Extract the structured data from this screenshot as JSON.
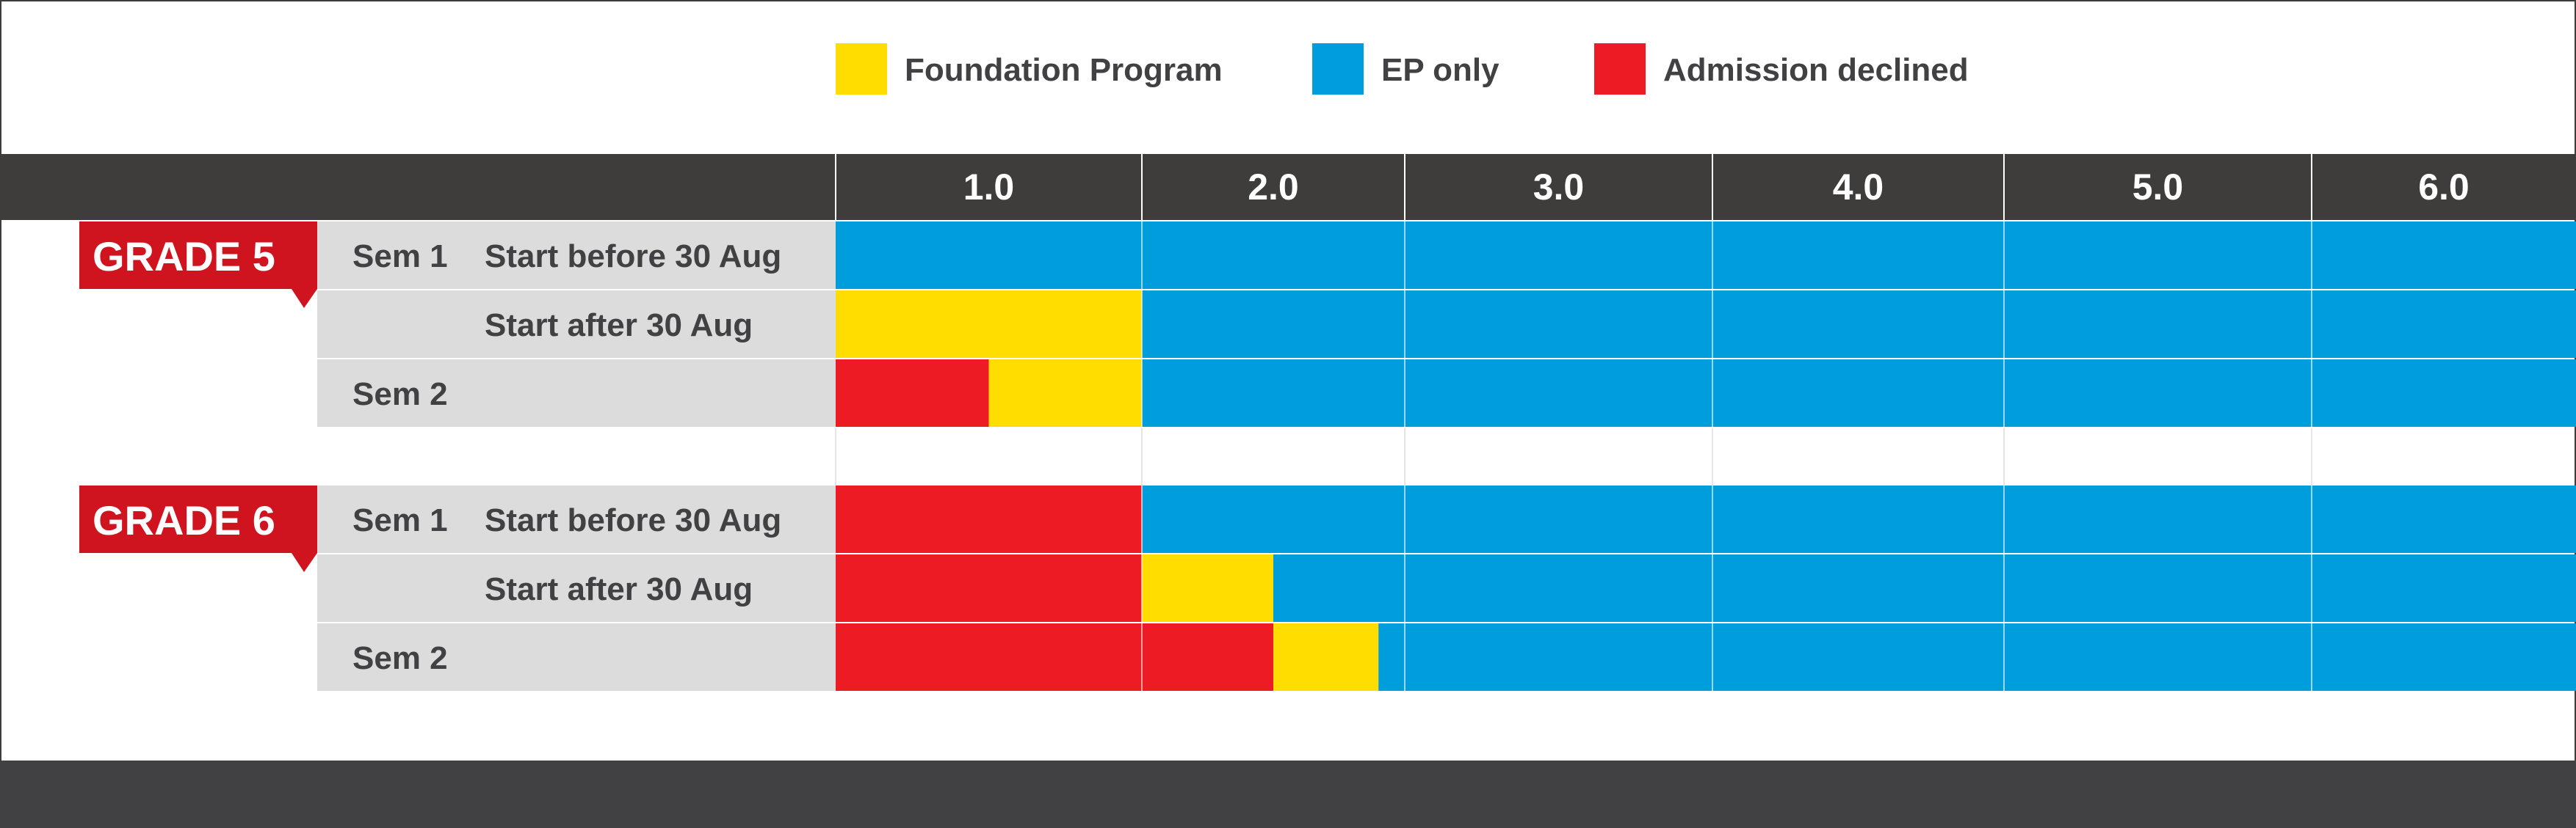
{
  "colors": {
    "foundation": "#ffdd00",
    "ep_only": "#009ddc",
    "declined": "#ed1c24",
    "header_bg": "#3f3d3b",
    "label_bg": "#dcdcdd",
    "grade_badge": "#d0141f",
    "footer": "#414042",
    "text": "#414042"
  },
  "legend": [
    {
      "key": "foundation",
      "label": "Foundation Program"
    },
    {
      "key": "ep_only",
      "label": "EP only"
    },
    {
      "key": "declined",
      "label": "Admission declined"
    }
  ],
  "chart_data": {
    "type": "bar",
    "subtype": "stacked-horizontal-timeline",
    "x_ticks": [
      "1.0",
      "2.0",
      "3.0",
      "4.0",
      "5.0",
      "6.0"
    ],
    "xlim": [
      0.5,
      6.5
    ],
    "groups": [
      {
        "name": "GRADE 5",
        "rows": [
          {
            "sem": "Sem 1",
            "start": "Start before 30 Aug",
            "segments": [
              {
                "key": "ep_only",
                "from": 0.5,
                "to": 6.5
              }
            ]
          },
          {
            "sem": "",
            "start": "Start after 30 Aug",
            "segments": [
              {
                "key": "foundation",
                "from": 0.5,
                "to": 1.5
              },
              {
                "key": "ep_only",
                "from": 1.5,
                "to": 6.5
              }
            ]
          },
          {
            "sem": "Sem 2",
            "start": "",
            "segments": [
              {
                "key": "declined",
                "from": 0.5,
                "to": 1.0
              },
              {
                "key": "foundation",
                "from": 1.0,
                "to": 1.5
              },
              {
                "key": "ep_only",
                "from": 1.5,
                "to": 6.5
              }
            ]
          }
        ]
      },
      {
        "name": "GRADE 6",
        "rows": [
          {
            "sem": "Sem 1",
            "start": "Start before 30 Aug",
            "segments": [
              {
                "key": "declined",
                "from": 0.5,
                "to": 1.5
              },
              {
                "key": "ep_only",
                "from": 1.5,
                "to": 6.5
              }
            ]
          },
          {
            "sem": "",
            "start": "Start after 30 Aug",
            "segments": [
              {
                "key": "declined",
                "from": 0.5,
                "to": 1.5
              },
              {
                "key": "foundation",
                "from": 1.5,
                "to": 2.0
              },
              {
                "key": "ep_only",
                "from": 2.0,
                "to": 6.5
              }
            ]
          },
          {
            "sem": "Sem 2",
            "start": "",
            "segments": [
              {
                "key": "declined",
                "from": 0.5,
                "to": 2.0
              },
              {
                "key": "foundation",
                "from": 2.0,
                "to": 2.4
              },
              {
                "key": "ep_only",
                "from": 2.4,
                "to": 6.5
              }
            ]
          }
        ]
      }
    ],
    "grid": true,
    "legend_position": "top"
  }
}
